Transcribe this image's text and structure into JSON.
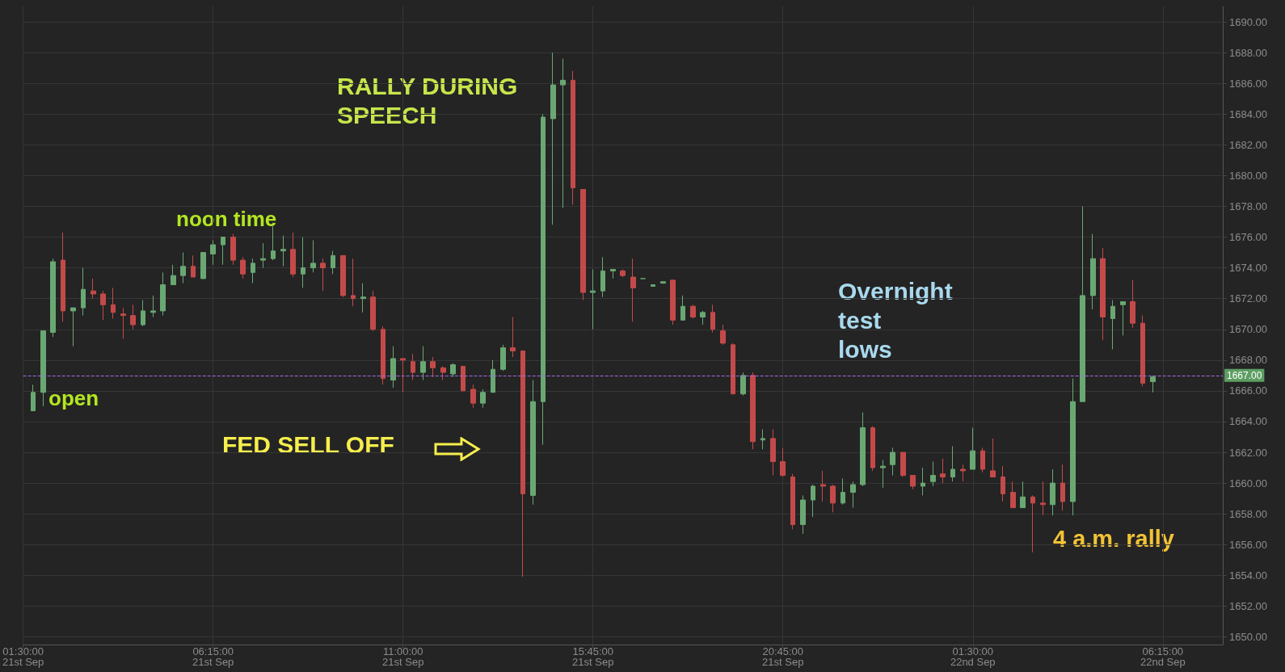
{
  "chart_data": {
    "type": "candlestick",
    "categories": [
      "01:30:00\n21st Sep",
      null,
      null,
      null,
      null,
      null,
      null,
      null,
      null,
      null,
      null,
      null,
      null,
      null,
      null,
      null,
      null,
      null,
      null,
      "06:15:00\n21st Sep",
      null,
      null,
      null,
      null,
      null,
      null,
      null,
      null,
      null,
      null,
      null,
      null,
      null,
      null,
      null,
      null,
      null,
      null,
      "11:00:00\n21st Sep",
      null,
      null,
      null,
      null,
      null,
      null,
      null,
      null,
      null,
      null,
      null,
      null,
      null,
      null,
      null,
      null,
      null,
      null,
      "15:45:00\n21st Sep",
      null,
      null,
      null,
      null,
      null,
      null,
      null,
      null,
      null,
      null,
      null,
      null,
      null,
      null,
      null,
      null,
      null,
      null,
      "20:45:00\n21st Sep",
      null,
      null,
      null,
      null,
      null,
      null,
      null,
      null,
      null,
      null,
      null,
      null,
      null,
      null,
      null,
      null,
      null,
      null,
      "01:30:00\n22nd Sep",
      null,
      null,
      null,
      null,
      null,
      null,
      null,
      null,
      null,
      null,
      null,
      null,
      null,
      null,
      null,
      null,
      null,
      null,
      "06:15:00\n22nd Sep",
      null,
      null,
      null,
      null,
      null,
      null
    ],
    "ohlc": [
      null,
      [
        1664.7,
        1666.4,
        1664.7,
        1665.9
      ],
      [
        1665.9,
        1669.9,
        1665.0,
        1669.9
      ],
      [
        1669.8,
        1674.6,
        1669.5,
        1674.4
      ],
      [
        1674.5,
        1676.3,
        1670.5,
        1671.2
      ],
      [
        1671.2,
        1671.4,
        1668.9,
        1671.4
      ],
      [
        1671.4,
        1674.0,
        1670.9,
        1672.6
      ],
      [
        1672.5,
        1673.3,
        1672.0,
        1672.3
      ],
      [
        1672.3,
        1672.5,
        1670.6,
        1671.6
      ],
      [
        1671.6,
        1672.7,
        1670.7,
        1671.1
      ],
      [
        1671.0,
        1671.4,
        1669.4,
        1670.9
      ],
      [
        1670.9,
        1671.6,
        1670.0,
        1670.3
      ],
      [
        1670.3,
        1671.9,
        1670.2,
        1671.2
      ],
      [
        1671.1,
        1672.2,
        1670.8,
        1671.2
      ],
      [
        1671.2,
        1673.7,
        1670.9,
        1672.9
      ],
      [
        1672.9,
        1674.2,
        1672.9,
        1673.5
      ],
      [
        1673.5,
        1675.0,
        1673.0,
        1674.1
      ],
      [
        1674.1,
        1674.8,
        1673.4,
        1673.4
      ],
      [
        1673.3,
        1675.0,
        1673.3,
        1675.0
      ],
      [
        1674.9,
        1675.8,
        1674.2,
        1675.5
      ],
      [
        1675.5,
        1676.0,
        1674.2,
        1676.0
      ],
      [
        1676.0,
        1676.2,
        1674.2,
        1674.5
      ],
      [
        1674.5,
        1674.7,
        1673.3,
        1673.6
      ],
      [
        1673.7,
        1674.6,
        1673.0,
        1674.3
      ],
      [
        1674.5,
        1675.6,
        1674.0,
        1674.6
      ],
      [
        1674.6,
        1676.7,
        1674.5,
        1675.1
      ],
      [
        1675.1,
        1676.1,
        1674.1,
        1675.2
      ],
      [
        1675.2,
        1676.3,
        1673.4,
        1673.6
      ],
      [
        1673.6,
        1676.0,
        1672.7,
        1674.0
      ],
      [
        1674.0,
        1675.8,
        1673.7,
        1674.3
      ],
      [
        1674.3,
        1674.6,
        1672.5,
        1674.0
      ],
      [
        1674.0,
        1675.1,
        1673.6,
        1674.8
      ],
      [
        1674.8,
        1674.8,
        1672.1,
        1672.2
      ],
      [
        1672.2,
        1674.6,
        1671.5,
        1672.0
      ],
      [
        1672.0,
        1673.0,
        1671.1,
        1672.1
      ],
      [
        1672.1,
        1672.5,
        1669.9,
        1670.0
      ],
      [
        1670.0,
        1670.2,
        1666.4,
        1666.8
      ],
      [
        1666.7,
        1668.9,
        1666.2,
        1668.1
      ],
      [
        1668.1,
        1668.1,
        1665.9,
        1668.0
      ],
      [
        1667.9,
        1668.4,
        1666.7,
        1667.2
      ],
      [
        1667.2,
        1668.9,
        1666.7,
        1667.9
      ],
      [
        1667.9,
        1668.2,
        1666.9,
        1667.5
      ],
      [
        1667.5,
        1667.6,
        1666.7,
        1667.2
      ],
      [
        1667.1,
        1667.8,
        1666.9,
        1667.7
      ],
      [
        1667.6,
        1667.6,
        1666.0,
        1666.0
      ],
      [
        1666.1,
        1666.4,
        1664.9,
        1665.2
      ],
      [
        1665.2,
        1666.1,
        1664.9,
        1665.9
      ],
      [
        1665.9,
        1668.0,
        1665.9,
        1667.4
      ],
      [
        1667.4,
        1669.0,
        1667.3,
        1668.8
      ],
      [
        1668.8,
        1670.8,
        1668.2,
        1668.6
      ],
      [
        1668.6,
        1668.6,
        1653.9,
        1659.3
      ],
      [
        1659.2,
        1666.7,
        1658.6,
        1665.3
      ],
      [
        1665.3,
        1684.0,
        1662.5,
        1683.8
      ],
      [
        1683.7,
        1688.0,
        1676.8,
        1685.9
      ],
      [
        1685.9,
        1687.6,
        1677.9,
        1686.2
      ],
      [
        1686.2,
        1686.8,
        1678.1,
        1679.2
      ],
      [
        1679.1,
        1679.1,
        1671.9,
        1672.4
      ],
      [
        1672.4,
        1673.9,
        1670.0,
        1672.5
      ],
      [
        1672.5,
        1674.7,
        1672.1,
        1673.8
      ],
      [
        1673.8,
        1673.9,
        1673.3,
        1673.9
      ],
      [
        1673.8,
        1673.9,
        1673.4,
        1673.5
      ],
      [
        1673.4,
        1674.6,
        1670.5,
        1672.7
      ],
      [
        1673.3,
        1673.3,
        1673.3,
        1673.3
      ],
      [
        1672.8,
        1672.9,
        1672.8,
        1672.9
      ],
      [
        1673.0,
        1673.1,
        1673.0,
        1673.1
      ],
      [
        1673.2,
        1673.2,
        1670.3,
        1670.6
      ],
      [
        1670.6,
        1672.2,
        1670.6,
        1671.5
      ],
      [
        1671.5,
        1671.6,
        1670.7,
        1670.8
      ],
      [
        1670.8,
        1671.2,
        1670.3,
        1671.1
      ],
      [
        1671.1,
        1671.6,
        1669.8,
        1670.0
      ],
      [
        1669.9,
        1670.3,
        1669.0,
        1669.1
      ],
      [
        1669.0,
        1669.1,
        1665.8,
        1665.8
      ],
      [
        1665.8,
        1667.2,
        1665.7,
        1667.0
      ],
      [
        1667.0,
        1667.2,
        1662.2,
        1662.7
      ],
      [
        1662.8,
        1663.5,
        1662.2,
        1662.9
      ],
      [
        1662.9,
        1663.5,
        1660.5,
        1661.4
      ],
      [
        1661.4,
        1662.3,
        1660.4,
        1660.5
      ],
      [
        1660.4,
        1660.6,
        1657.0,
        1657.3
      ],
      [
        1657.3,
        1659.2,
        1656.7,
        1658.9
      ],
      [
        1658.9,
        1659.9,
        1657.8,
        1659.8
      ],
      [
        1659.9,
        1660.8,
        1658.8,
        1659.8
      ],
      [
        1659.8,
        1659.9,
        1658.1,
        1658.7
      ],
      [
        1658.7,
        1660.3,
        1658.6,
        1659.4
      ],
      [
        1659.4,
        1660.1,
        1658.4,
        1659.9
      ],
      [
        1659.9,
        1664.6,
        1659.8,
        1663.6
      ],
      [
        1663.6,
        1663.7,
        1660.8,
        1661.0
      ],
      [
        1661.0,
        1661.5,
        1659.7,
        1661.1
      ],
      [
        1661.2,
        1662.3,
        1660.5,
        1662.0
      ],
      [
        1662.0,
        1662.0,
        1660.4,
        1660.5
      ],
      [
        1660.5,
        1660.5,
        1659.6,
        1659.8
      ],
      [
        1659.8,
        1661.0,
        1659.2,
        1660.0
      ],
      [
        1660.1,
        1661.4,
        1659.8,
        1660.5
      ],
      [
        1660.6,
        1661.6,
        1660.0,
        1660.4
      ],
      [
        1660.4,
        1662.4,
        1660.1,
        1660.9
      ],
      [
        1660.9,
        1661.2,
        1660.1,
        1660.8
      ],
      [
        1660.9,
        1663.6,
        1660.9,
        1662.1
      ],
      [
        1662.1,
        1662.3,
        1660.7,
        1660.9
      ],
      [
        1660.8,
        1662.9,
        1660.4,
        1660.4
      ],
      [
        1660.4,
        1661.1,
        1658.8,
        1659.3
      ],
      [
        1659.4,
        1660.1,
        1658.4,
        1658.4
      ],
      [
        1658.4,
        1660.1,
        1658.4,
        1659.1
      ],
      [
        1659.1,
        1659.2,
        1655.5,
        1658.7
      ],
      [
        1658.7,
        1660.1,
        1657.9,
        1658.6
      ],
      [
        1658.6,
        1660.9,
        1657.9,
        1660.0
      ],
      [
        1660.0,
        1661.2,
        1658.2,
        1658.8
      ],
      [
        1658.8,
        1666.8,
        1657.9,
        1665.3
      ],
      [
        1665.3,
        1678.0,
        1665.3,
        1672.2
      ],
      [
        1672.2,
        1676.2,
        1671.3,
        1674.6
      ],
      [
        1674.6,
        1675.3,
        1669.3,
        1670.8
      ],
      [
        1670.7,
        1671.9,
        1668.7,
        1671.5
      ],
      [
        1671.6,
        1671.8,
        1669.6,
        1671.8
      ],
      [
        1671.8,
        1673.2,
        1670.1,
        1670.4
      ],
      [
        1670.4,
        1670.9,
        1666.3,
        1666.5
      ],
      [
        1666.6,
        1667.0,
        1665.9,
        1666.9
      ],
      null,
      null,
      null,
      null,
      null,
      null,
      null
    ],
    "ylim": [
      1649.5,
      1691
    ],
    "yticks": [
      {
        "value": 1650,
        "label": "1650.00"
      },
      {
        "value": 1652,
        "label": "1652.00"
      },
      {
        "value": 1654,
        "label": "1654.00"
      },
      {
        "value": 1656,
        "label": "1656.00"
      },
      {
        "value": 1658,
        "label": "1658.00"
      },
      {
        "value": 1660,
        "label": "1660.00"
      },
      {
        "value": 1662,
        "label": "1662.00"
      },
      {
        "value": 1664,
        "label": "1664.00"
      },
      {
        "value": 1666,
        "label": "1666.00"
      },
      {
        "value": 1668,
        "label": "1668.00"
      },
      {
        "value": 1670,
        "label": "1670.00"
      },
      {
        "value": 1672,
        "label": "1672.00"
      },
      {
        "value": 1674,
        "label": "1674.00"
      },
      {
        "value": 1676,
        "label": "1676.00"
      },
      {
        "value": 1678,
        "label": "1678.00"
      },
      {
        "value": 1680,
        "label": "1680.00"
      },
      {
        "value": 1682,
        "label": "1682.00"
      },
      {
        "value": 1684,
        "label": "1684.00"
      },
      {
        "value": 1686,
        "label": "1686.00"
      },
      {
        "value": 1688,
        "label": "1688.00"
      },
      {
        "value": 1690,
        "label": "1690.00"
      }
    ],
    "ref_lines": [
      {
        "axis": "y",
        "value": 1667,
        "label": "1667.00",
        "color": "#a36be0",
        "line_style": "dashed"
      }
    ],
    "annotations": [
      "RALLY DURING\nSPEECH",
      "noon time",
      "open",
      "FED SELL OFF",
      "Overnight\ntest\nlows",
      "4 a.m. rally"
    ],
    "grid": true
  }
}
